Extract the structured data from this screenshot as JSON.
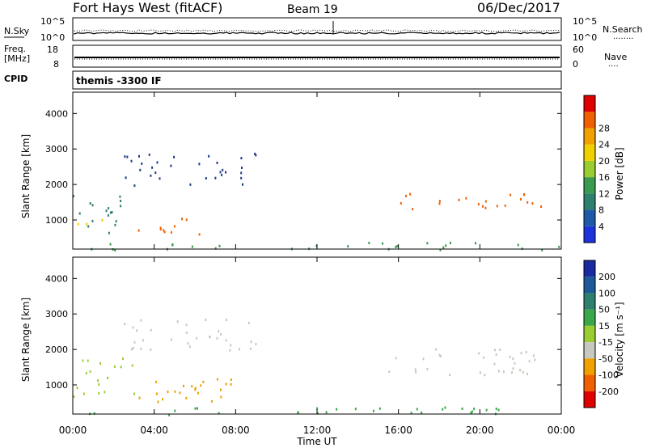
{
  "header": {
    "title": "Fort Hays West (fitACF)",
    "beam": "Beam 19",
    "date": "06/Dec/2017"
  },
  "sky_panel": {
    "left_label": "N.Sky",
    "left_ticks": [
      "10^5",
      "10^0"
    ],
    "right_ticks": [
      "10^5",
      "10^0"
    ],
    "right_label": "N.Search",
    "right_marker": "........"
  },
  "freq_panel": {
    "left_label_1": "Freq.",
    "left_label_2": "[MHz]",
    "left_ticks": [
      "18",
      "8"
    ],
    "right_ticks": [
      "60",
      "0"
    ],
    "right_label": "Nave",
    "right_marker": "....",
    "cpid_label": "CPID"
  },
  "cpid_panel": {
    "text": "themis -3300 IF"
  },
  "colors": {
    "blue": "#1e32dc",
    "navy": "#1f3a8a",
    "teal": "#2f7f6f",
    "green": "#3aa84a",
    "lime": "#9acd32",
    "yellow": "#f0d000",
    "orange": "#f0a000",
    "deep_orange": "#f06000",
    "red": "#e00000",
    "grey": "#c8c8c0",
    "dark_blue": "#1a2aa0"
  },
  "chart_data": [
    {
      "type": "heatmap",
      "name": "power",
      "ylabel": "Slant Range [km]",
      "xlabel": "Time UT",
      "x_ticks": [
        "00:00",
        "04:00",
        "08:00",
        "12:00",
        "16:00",
        "20:00",
        "00:00"
      ],
      "xlim_hours": [
        0,
        24
      ],
      "ylim_km": [
        180,
        4600
      ],
      "y_ticks": [
        1000,
        2000,
        3000,
        4000
      ],
      "colorbar_label": "Power [dB]",
      "colorbar_ticks": [
        4,
        8,
        12,
        16,
        20,
        24,
        28
      ],
      "colorbar_colors": [
        "#1e32dc",
        "#1f5aa8",
        "#2f7f6f",
        "#3a9a50",
        "#9acd32",
        "#f0d000",
        "#f0a000",
        "#f06000",
        "#e00000"
      ],
      "features": [
        {
          "t": [
            0.0,
            2.5
          ],
          "r": [
            600,
            1800
          ],
          "color": "#2f7f6f"
        },
        {
          "t": [
            0.0,
            1.5
          ],
          "r": [
            800,
            1200
          ],
          "color": "#f0d000"
        },
        {
          "t": [
            3.0,
            6.5
          ],
          "r": [
            600,
            1100
          ],
          "color": "#f06000"
        },
        {
          "t": [
            15.5,
            23.0
          ],
          "r": [
            1300,
            1800
          ],
          "color": "#f06000"
        },
        {
          "t": [
            2.5,
            9.0
          ],
          "r": [
            2000,
            2900
          ],
          "color": "#1f3a8a"
        },
        {
          "t": [
            0.0,
            24.0
          ],
          "r": [
            180,
            400
          ],
          "color": "#3a9a50"
        }
      ]
    },
    {
      "type": "heatmap",
      "name": "velocity",
      "ylabel": "Slant Range [km]",
      "xlabel": "Time UT",
      "x_ticks": [
        "00:00",
        "04:00",
        "08:00",
        "12:00",
        "16:00",
        "20:00",
        "00:00"
      ],
      "xlim_hours": [
        0,
        24
      ],
      "ylim_km": [
        180,
        4600
      ],
      "y_ticks": [
        1000,
        2000,
        3000,
        4000
      ],
      "colorbar_label": "Velocity [m s⁻¹]",
      "colorbar_ticks": [
        200,
        100,
        50,
        15,
        -15,
        -50,
        -100,
        -200
      ],
      "colorbar_colors": [
        "#1a2aa0",
        "#1e5a9a",
        "#2f7f6f",
        "#3aa84a",
        "#9acd32",
        "#c8c8c0",
        "#f0a000",
        "#f06000",
        "#e00000"
      ],
      "features": [
        {
          "t": [
            0.0,
            3.0
          ],
          "r": [
            700,
            1800
          ],
          "color": "#9acd32"
        },
        {
          "t": [
            2.0,
            8.0
          ],
          "r": [
            500,
            1200
          ],
          "color": "#f0a000"
        },
        {
          "t": [
            15.5,
            23.0
          ],
          "r": [
            1300,
            2100
          ],
          "color": "#c8c8c0"
        },
        {
          "t": [
            2.5,
            9.0
          ],
          "r": [
            2000,
            2900
          ],
          "color": "#c8c8c0"
        },
        {
          "t": [
            0.0,
            24.0
          ],
          "r": [
            180,
            400
          ],
          "color": "#3aa84a"
        }
      ]
    }
  ]
}
